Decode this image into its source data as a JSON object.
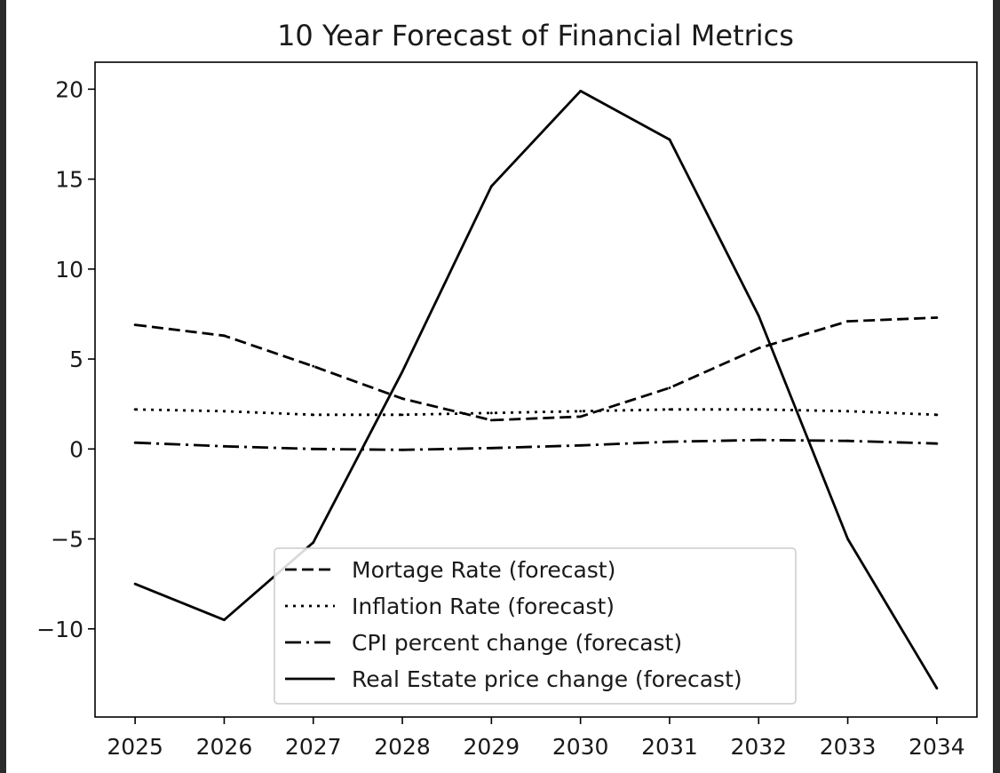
{
  "chart_data": {
    "type": "line",
    "title": "10 Year Forecast of Financial Metrics",
    "xlabel": "",
    "ylabel": "",
    "x": [
      2025,
      2026,
      2027,
      2028,
      2029,
      2030,
      2031,
      2032,
      2033,
      2034
    ],
    "x_ticks": [
      "2025",
      "2026",
      "2027",
      "2028",
      "2029",
      "2030",
      "2031",
      "2032",
      "2033",
      "2034"
    ],
    "y_ticks": [
      -10,
      -5,
      0,
      5,
      10,
      15,
      20
    ],
    "y_tick_labels": [
      "−10",
      "−5",
      "0",
      "5",
      "10",
      "15",
      "20"
    ],
    "xlim": [
      2024.55,
      2034.45
    ],
    "ylim": [
      -14.9,
      21.5
    ],
    "grid": false,
    "legend_position": "lower center",
    "series": [
      {
        "name": "Mortage Rate (forecast)",
        "style": "dashed",
        "values": [
          6.9,
          6.3,
          4.6,
          2.8,
          1.6,
          1.8,
          3.4,
          5.6,
          7.1,
          7.3
        ]
      },
      {
        "name": "Inflation Rate (forecast)",
        "style": "dotted",
        "values": [
          2.2,
          2.1,
          1.9,
          1.9,
          2.0,
          2.1,
          2.2,
          2.2,
          2.1,
          1.9
        ]
      },
      {
        "name": "CPI percent change (forecast)",
        "style": "dashdot",
        "values": [
          0.35,
          0.15,
          0.0,
          -0.05,
          0.05,
          0.2,
          0.4,
          0.5,
          0.45,
          0.3
        ]
      },
      {
        "name": "Real Estate price change (forecast)",
        "style": "solid",
        "values": [
          -7.5,
          -9.5,
          -5.2,
          4.3,
          14.6,
          19.9,
          17.2,
          7.4,
          -5.0,
          -13.3
        ]
      }
    ],
    "colors": {
      "line": "#000000",
      "axis": "#000000",
      "legend_border": "#cccccc"
    }
  }
}
